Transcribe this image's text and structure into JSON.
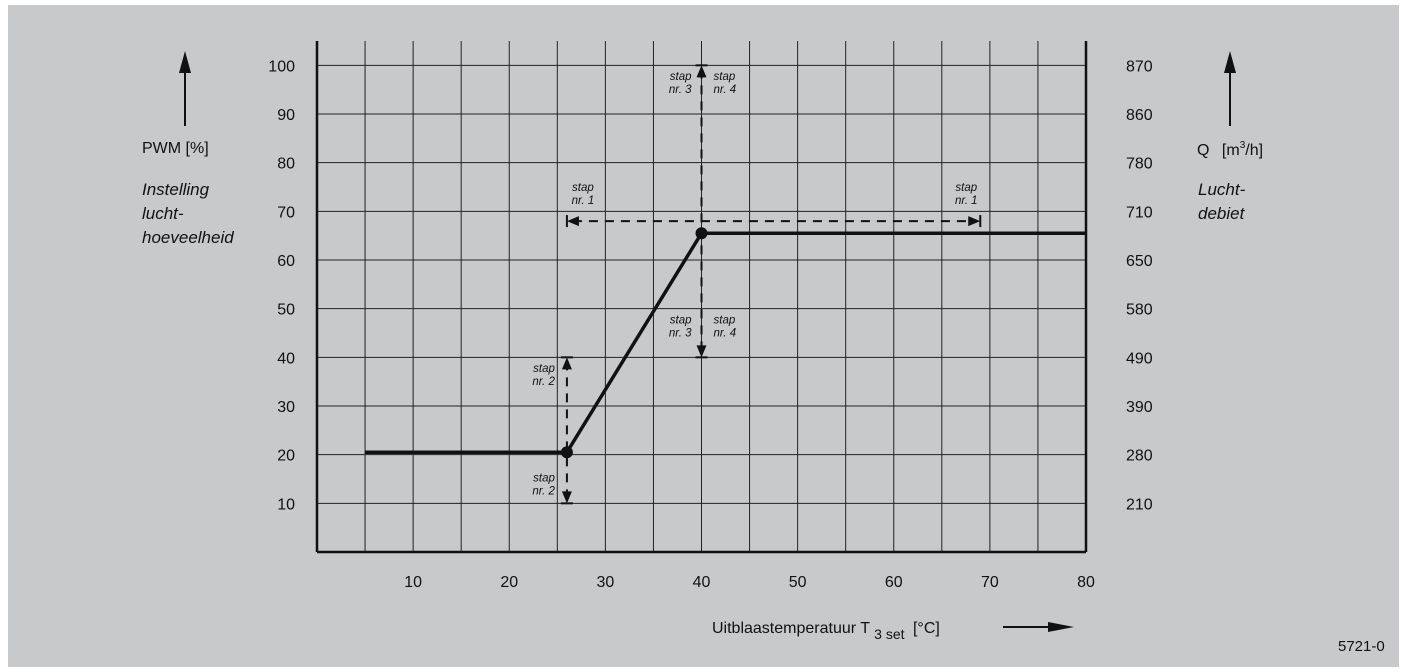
{
  "chart_data": {
    "type": "line",
    "x": [
      5,
      26,
      40,
      80
    ],
    "y": [
      20.5,
      20.5,
      65.5,
      65.5
    ],
    "xlim": [
      0,
      80
    ],
    "ylim": [
      0,
      105
    ],
    "x_ticks": [
      10,
      20,
      30,
      40,
      50,
      60,
      70,
      80
    ],
    "y_ticks": [
      10,
      20,
      30,
      40,
      50,
      60,
      70,
      80,
      90,
      100
    ],
    "y2_ticks": [
      "210",
      "280",
      "390",
      "490",
      "580",
      "650",
      "710",
      "780",
      "860",
      "870"
    ],
    "grid": true,
    "markers": [
      {
        "x": 26,
        "y": 20.5
      },
      {
        "x": 40,
        "y": 65.5
      }
    ],
    "steps": [
      {
        "id": "step1",
        "label_line1": "stap",
        "label_line2": "nr. 1",
        "x": [
          26,
          69
        ],
        "y": 68
      },
      {
        "id": "step2",
        "label_line1": "stap",
        "label_line2": "nr. 2",
        "x": 26,
        "y": [
          10,
          40
        ]
      },
      {
        "id": "step3",
        "label_line1": "stap",
        "label_line2": "nr. 3",
        "x": 40,
        "y": [
          40,
          100
        ]
      },
      {
        "id": "step4",
        "label_line1": "stap",
        "label_line2": "nr. 4",
        "x": 40,
        "y": [
          40,
          100
        ]
      }
    ],
    "left_axis": {
      "title": "PWM [%]",
      "desc_line1": "Instelling",
      "desc_line2": "lucht-",
      "desc_line3": "hoeveelheid"
    },
    "right_axis": {
      "title_q": "Q",
      "title_unit_open": "[m",
      "title_sup": "3",
      "title_unit_close": "/h]",
      "desc_line1": "Lucht-",
      "desc_line2": "debiet"
    },
    "x_axis": {
      "title_main": "Uitblaastemperatuur T",
      "title_sub": "3 set",
      "title_unit": "[°C]"
    },
    "figure_code": "5721-0"
  }
}
